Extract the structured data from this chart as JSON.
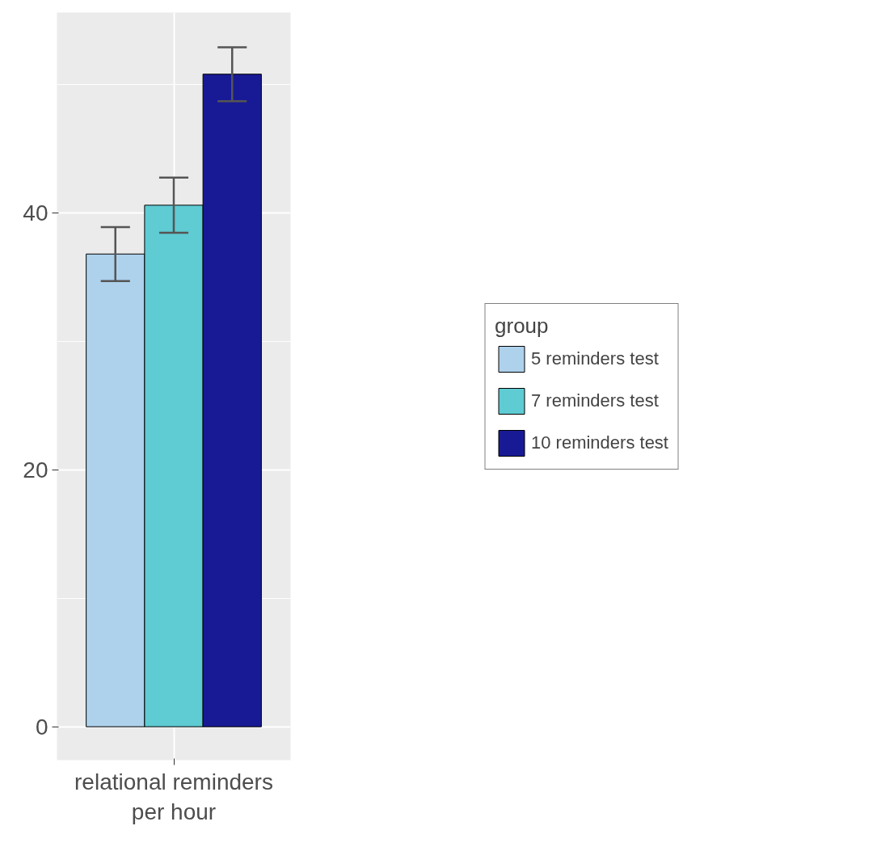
{
  "chart_data": {
    "type": "bar",
    "categories": [
      "relational reminders\nper hour"
    ],
    "series": [
      {
        "name": "5 reminders test",
        "color": "#aed1ec",
        "values": [
          36.8
        ],
        "errors": [
          2.1
        ]
      },
      {
        "name": "7 reminders test",
        "color": "#5fcbd3",
        "values": [
          40.6
        ],
        "errors": [
          2.15
        ]
      },
      {
        "name": "10 reminders test",
        "color": "#181a95",
        "values": [
          50.8
        ],
        "errors": [
          2.1
        ]
      }
    ],
    "ylim": [
      -2.6,
      55.6
    ],
    "yticks": [
      0,
      20,
      40
    ],
    "grid": true,
    "legend": "right",
    "legend_title": "group"
  }
}
